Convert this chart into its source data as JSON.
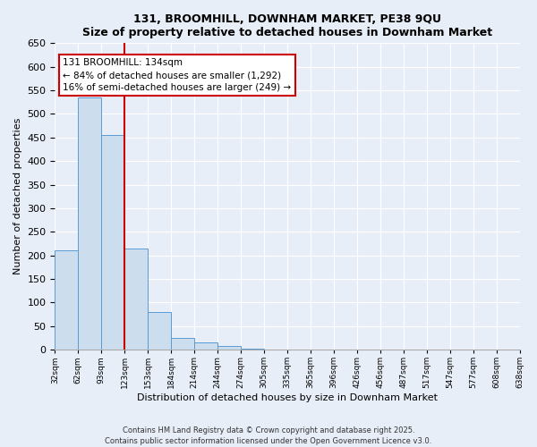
{
  "title": "131, BROOMHILL, DOWNHAM MARKET, PE38 9QU",
  "subtitle": "Size of property relative to detached houses in Downham Market",
  "xlabel": "Distribution of detached houses by size in Downham Market",
  "ylabel": "Number of detached properties",
  "bar_values": [
    210,
    535,
    455,
    215,
    80,
    25,
    15,
    8,
    3,
    0,
    0,
    0,
    0,
    0,
    0,
    0,
    0,
    0,
    0,
    0
  ],
  "bin_labels": [
    "32sqm",
    "62sqm",
    "93sqm",
    "123sqm",
    "153sqm",
    "184sqm",
    "214sqm",
    "244sqm",
    "274sqm",
    "305sqm",
    "335sqm",
    "365sqm",
    "396sqm",
    "426sqm",
    "456sqm",
    "487sqm",
    "517sqm",
    "547sqm",
    "577sqm",
    "608sqm",
    "638sqm"
  ],
  "bar_color": "#ccdded",
  "bar_edge_color": "#5b9bd5",
  "vline_x": 3,
  "vline_color": "#cc0000",
  "ylim": [
    0,
    650
  ],
  "yticks": [
    0,
    50,
    100,
    150,
    200,
    250,
    300,
    350,
    400,
    450,
    500,
    550,
    600,
    650
  ],
  "annotation_title": "131 BROOMHILL: 134sqm",
  "annotation_line1": "← 84% of detached houses are smaller (1,292)",
  "annotation_line2": "16% of semi-detached houses are larger (249) →",
  "annotation_box_color": "#ffffff",
  "annotation_box_edge": "#cc0000",
  "footer_line1": "Contains HM Land Registry data © Crown copyright and database right 2025.",
  "footer_line2": "Contains public sector information licensed under the Open Government Licence v3.0.",
  "bg_color": "#e8eef8",
  "plot_bg_color": "#e8eef8",
  "grid_color": "#ffffff"
}
